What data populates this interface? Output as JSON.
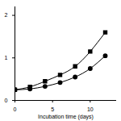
{
  "chart_data": {
    "type": "line",
    "x_label": "Incubation time (days)",
    "xlim": [
      0,
      13.5
    ],
    "xticks": [
      0,
      5,
      10
    ],
    "ylim": [
      0,
      2.2
    ],
    "yticks": [
      0,
      1,
      2
    ],
    "grid": false,
    "series": [
      {
        "color": "#000000",
        "marker": "square",
        "line_style": "solid",
        "x": [
          0,
          2,
          4,
          6,
          8,
          10,
          12
        ],
        "values": [
          0.25,
          0.32,
          0.45,
          0.6,
          0.8,
          1.15,
          1.6
        ]
      },
      {
        "color": "#000000",
        "marker": "circle",
        "line_style": "solid",
        "x": [
          0,
          2,
          4,
          6,
          8,
          10,
          12
        ],
        "values": [
          0.25,
          0.27,
          0.33,
          0.42,
          0.55,
          0.75,
          1.05
        ]
      }
    ]
  }
}
